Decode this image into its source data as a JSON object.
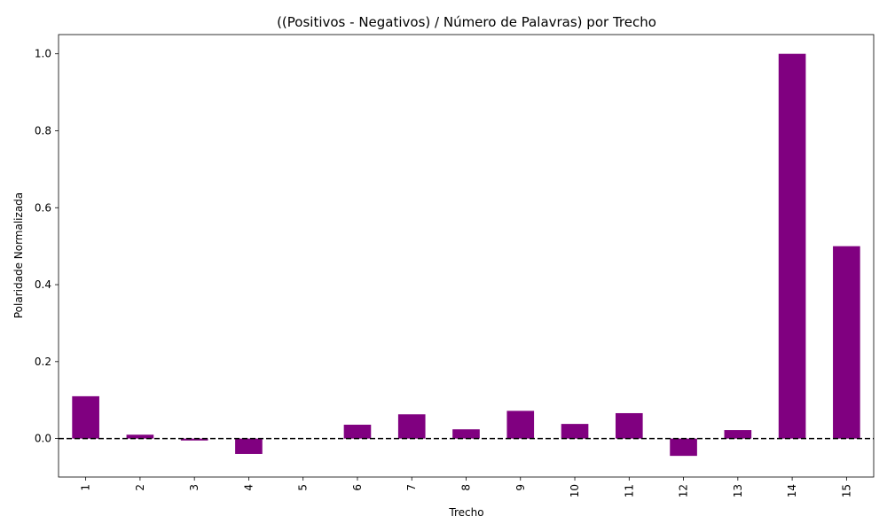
{
  "chart_data": {
    "type": "bar",
    "title": "((Positivos - Negativos) / Número de Palavras) por Trecho",
    "xlabel": "Trecho",
    "ylabel": "Polaridade Normalizada",
    "categories": [
      "1",
      "2",
      "3",
      "4",
      "5",
      "6",
      "7",
      "8",
      "9",
      "10",
      "11",
      "12",
      "13",
      "14",
      "15"
    ],
    "values": [
      0.11,
      0.01,
      -0.005,
      -0.04,
      0.0,
      0.036,
      0.063,
      0.024,
      0.072,
      0.038,
      0.066,
      -0.045,
      0.022,
      1.0,
      0.5
    ],
    "ylim": [
      -0.1,
      1.05
    ],
    "yticks": [
      0.0,
      0.2,
      0.4,
      0.6,
      0.8,
      1.0
    ],
    "ytick_labels": [
      "0.0",
      "0.2",
      "0.4",
      "0.6",
      "0.8",
      "1.0"
    ],
    "bar_color": "#800080",
    "reference_line": {
      "y": 0,
      "style": "dashed",
      "color": "#000000"
    },
    "grid": false,
    "legend": "none"
  }
}
